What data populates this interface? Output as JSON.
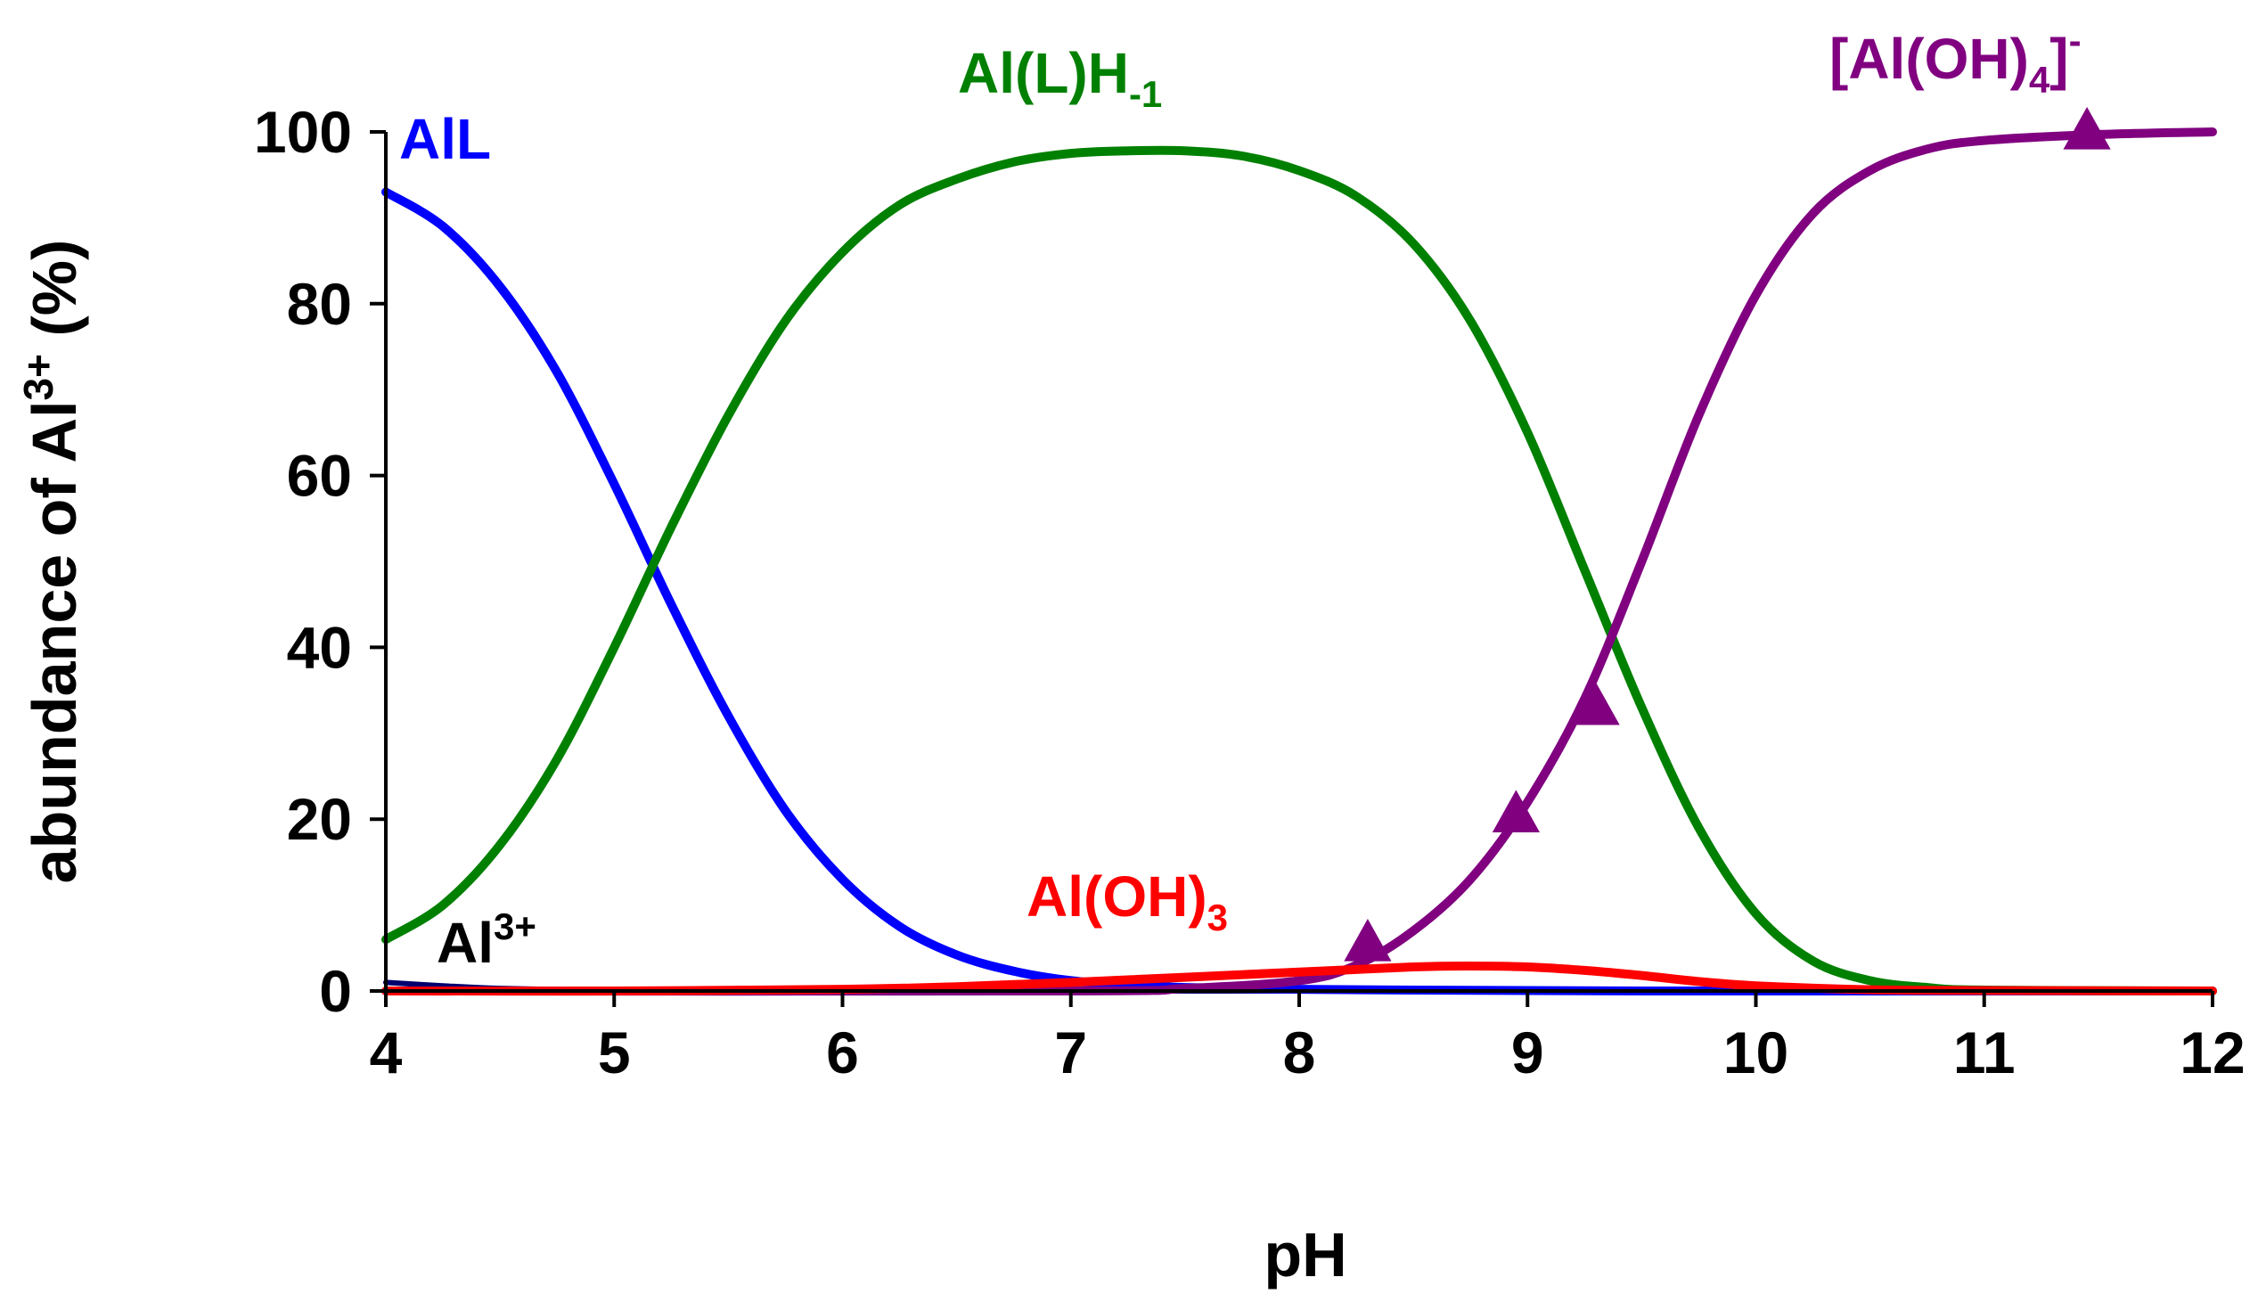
{
  "chart_data": {
    "type": "line",
    "xlabel": "pH",
    "ylabel": {
      "main": "abundance of Al",
      "sup": "3+",
      "unit": " (%)"
    },
    "xlim": [
      4,
      12
    ],
    "ylim": [
      0,
      100
    ],
    "x_ticks": [
      "4",
      "5",
      "6",
      "7",
      "8",
      "9",
      "10",
      "11",
      "12"
    ],
    "y_ticks": [
      "0",
      "20",
      "40",
      "60",
      "80",
      "100"
    ],
    "grid": false,
    "series": [
      {
        "id": "alL",
        "label": {
          "base": "AlL",
          "sub": "",
          "sup": ""
        },
        "color": "#0000ff",
        "x": [
          4.0,
          4.25,
          4.5,
          4.75,
          5.0,
          5.25,
          5.5,
          5.75,
          6.0,
          6.25,
          6.5,
          6.75,
          7.0,
          7.25,
          7.5,
          8.0,
          8.5,
          9.0,
          9.5,
          10.0,
          10.5,
          11.0,
          12.0
        ],
        "y": [
          93,
          89,
          82,
          72,
          59,
          45,
          32,
          21,
          13,
          7.5,
          4.2,
          2.3,
          1.2,
          0.7,
          0.4,
          0.2,
          0.1,
          0.05,
          0,
          0,
          0,
          0,
          0
        ]
      },
      {
        "id": "al_l_h_minus1",
        "label": {
          "base": "Al(L)H",
          "sub": "-1",
          "sup": ""
        },
        "color": "#008000",
        "x": [
          4.0,
          4.25,
          4.5,
          4.75,
          5.0,
          5.25,
          5.5,
          5.75,
          6.0,
          6.25,
          6.5,
          6.75,
          7.0,
          7.25,
          7.5,
          7.75,
          8.0,
          8.25,
          8.5,
          8.75,
          9.0,
          9.25,
          9.5,
          9.75,
          10.0,
          10.25,
          10.5,
          10.75,
          11.0,
          12.0
        ],
        "y": [
          6,
          10,
          17,
          27,
          40,
          54,
          67,
          78,
          86,
          91.5,
          94.5,
          96.5,
          97.5,
          97.8,
          97.8,
          97.2,
          95.5,
          92.5,
          87,
          78,
          65,
          49,
          33,
          19,
          9,
          3.5,
          1.2,
          0.4,
          0.1,
          0
        ]
      },
      {
        "id": "al_oh3",
        "label": {
          "base": "Al(OH)",
          "sub": "3",
          "sup": ""
        },
        "color": "#ff0000",
        "x": [
          4.0,
          5.0,
          6.0,
          6.5,
          7.0,
          7.5,
          8.0,
          8.5,
          8.75,
          9.0,
          9.25,
          9.5,
          9.75,
          10.0,
          10.5,
          11.0,
          12.0
        ],
        "y": [
          0,
          0,
          0.2,
          0.5,
          1.0,
          1.6,
          2.2,
          2.8,
          2.9,
          2.8,
          2.4,
          1.8,
          1.1,
          0.6,
          0.15,
          0.05,
          0
        ]
      },
      {
        "id": "al3plus",
        "label": {
          "base": "Al",
          "sub": "",
          "sup": "3+"
        },
        "color": "#00006e",
        "x": [
          4.0,
          4.25,
          4.5,
          5.0,
          6.0,
          12.0
        ],
        "y": [
          1.0,
          0.6,
          0.3,
          0.1,
          0,
          0
        ]
      },
      {
        "id": "al_oh4_minus",
        "label": {
          "base": "[Al(OH)",
          "sub": "4",
          "sup": "-",
          "bracket": "]"
        },
        "color": "#800080",
        "x": [
          4.0,
          7.0,
          7.5,
          8.0,
          8.25,
          8.5,
          8.75,
          9.0,
          9.25,
          9.5,
          9.75,
          10.0,
          10.25,
          10.5,
          10.75,
          11.0,
          11.5,
          12.0
        ],
        "y": [
          0,
          0,
          0.3,
          1.2,
          3,
          7,
          13,
          22,
          34,
          50,
          67,
          81,
          90.5,
          95.5,
          98,
          99,
          99.7,
          100
        ],
        "markers": {
          "shape": "triangle",
          "points": [
            [
              8.3,
              5.5
            ],
            [
              8.95,
              20.5
            ],
            [
              9.3,
              33.0
            ],
            [
              11.45,
              100.0
            ]
          ]
        }
      }
    ]
  }
}
